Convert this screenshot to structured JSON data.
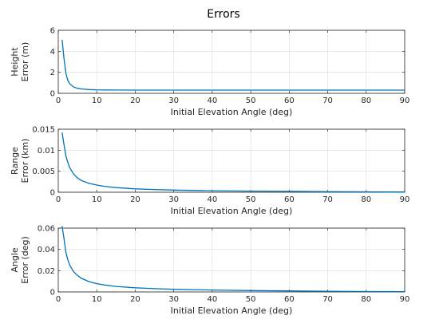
{
  "figure_title": "Errors",
  "colors": {
    "series": "#0072bd"
  },
  "chart_data": [
    {
      "type": "line",
      "xlabel": "Initial Elevation Angle (deg)",
      "ylabel": [
        "Height",
        "Error (m)"
      ],
      "xlim": [
        0,
        90
      ],
      "ylim": [
        0,
        6
      ],
      "xticks": [
        "0",
        "10",
        "20",
        "30",
        "40",
        "50",
        "60",
        "70",
        "80",
        "90"
      ],
      "yticks": [
        "0",
        "2",
        "4",
        "6"
      ],
      "grid": true,
      "series": [
        {
          "x": [
            1,
            1.5,
            2,
            2.5,
            3,
            4,
            5,
            6,
            8,
            10,
            12,
            15,
            20,
            30,
            40,
            50,
            60,
            70,
            80,
            90
          ],
          "y": [
            5.1,
            3.3,
            1.9,
            1.2,
            0.9,
            0.6,
            0.48,
            0.42,
            0.36,
            0.33,
            0.32,
            0.31,
            0.3,
            0.3,
            0.3,
            0.3,
            0.3,
            0.3,
            0.3,
            0.3
          ]
        }
      ]
    },
    {
      "type": "line",
      "xlabel": "Initial Elevation Angle (deg)",
      "ylabel": [
        "Range",
        "Error (km)"
      ],
      "xlim": [
        0,
        90
      ],
      "ylim": [
        0,
        0.015
      ],
      "xticks": [
        "0",
        "10",
        "20",
        "30",
        "40",
        "50",
        "60",
        "70",
        "80",
        "90"
      ],
      "yticks": [
        "0",
        "0.005",
        "0.01",
        "0.015"
      ],
      "grid": true,
      "series": [
        {
          "x": [
            1,
            1.5,
            2,
            2.5,
            3,
            4,
            5,
            6,
            8,
            10,
            12,
            15,
            20,
            25,
            30,
            40,
            50,
            60,
            70,
            80,
            90
          ],
          "y": [
            0.0142,
            0.0113,
            0.0086,
            0.007,
            0.0058,
            0.0043,
            0.0034,
            0.0028,
            0.0021,
            0.0017,
            0.0014,
            0.0011,
            0.0008,
            0.00065,
            0.00052,
            0.00037,
            0.00027,
            0.0002,
            0.00014,
            9e-05,
            6e-05
          ]
        }
      ]
    },
    {
      "type": "line",
      "xlabel": "Initial Elevation Angle (deg)",
      "ylabel": [
        "Angle",
        "Error (deg)"
      ],
      "xlim": [
        0,
        90
      ],
      "ylim": [
        0,
        0.06
      ],
      "xticks": [
        "0",
        "10",
        "20",
        "30",
        "40",
        "50",
        "60",
        "70",
        "80",
        "90"
      ],
      "yticks": [
        "0",
        "0.02",
        "0.04",
        "0.06"
      ],
      "grid": true,
      "series": [
        {
          "x": [
            1,
            1.5,
            2,
            2.5,
            3,
            4,
            5,
            6,
            8,
            10,
            12,
            15,
            20,
            25,
            30,
            40,
            50,
            60,
            70,
            80,
            90
          ],
          "y": [
            0.062,
            0.05,
            0.037,
            0.03,
            0.025,
            0.019,
            0.0155,
            0.0128,
            0.0097,
            0.0078,
            0.0065,
            0.0052,
            0.0039,
            0.0031,
            0.0025,
            0.0018,
            0.0013,
            0.001,
            0.0007,
            0.0004,
            0.0002
          ]
        }
      ]
    }
  ]
}
